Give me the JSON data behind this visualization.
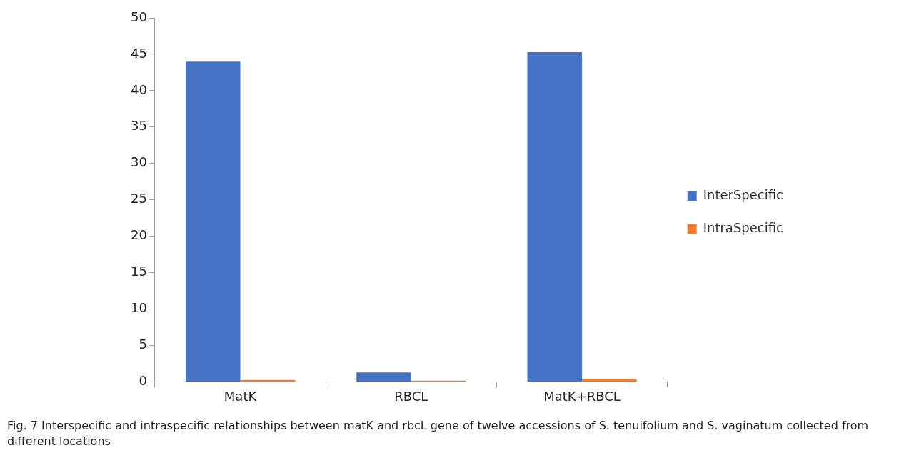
{
  "chart_data": {
    "type": "bar",
    "categories": [
      "MatK",
      "RBCL",
      "MatK+RBCL"
    ],
    "series": [
      {
        "name": "InterSpecific",
        "color": "#4472c4",
        "values": [
          44,
          1.3,
          45.3
        ]
      },
      {
        "name": "IntraSpecific",
        "color": "#ed7d31",
        "values": [
          0.25,
          0.15,
          0.4
        ]
      }
    ],
    "ylim": [
      0,
      50
    ],
    "yticks": [
      0,
      5,
      10,
      15,
      20,
      25,
      30,
      35,
      40,
      45,
      50
    ],
    "grid": false,
    "legend": "right",
    "annotations": [
      "Fig. 7  Interspecific and intraspecific relationships between matK and rbcL gene of twelve accessions of S. tenuifolium and S. vaginatum collected from different locations"
    ]
  }
}
